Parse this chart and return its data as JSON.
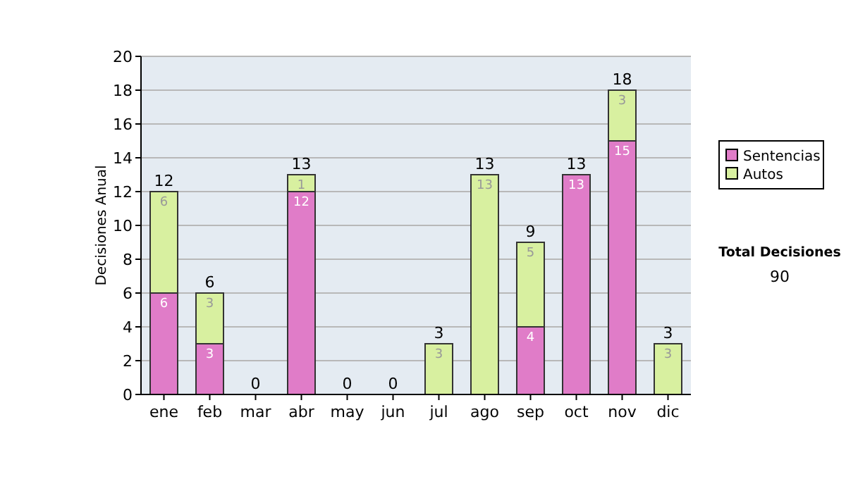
{
  "chart_data": {
    "type": "bar",
    "stacked": true,
    "ylabel": "Decisiones Anual",
    "categories": [
      "ene",
      "feb",
      "mar",
      "abr",
      "may",
      "jun",
      "jul",
      "ago",
      "sep",
      "oct",
      "nov",
      "dic"
    ],
    "series": [
      {
        "name": "Sentencias",
        "color": "#e07cc8",
        "values": [
          6,
          3,
          0,
          12,
          0,
          0,
          0,
          0,
          4,
          13,
          15,
          0
        ],
        "value_labels": [
          "6",
          "3",
          null,
          "12",
          null,
          null,
          null,
          null,
          "4",
          "13",
          "15",
          null
        ]
      },
      {
        "name": "Autos",
        "color": "#d8f0a0",
        "values": [
          6,
          3,
          0,
          1,
          0,
          0,
          3,
          13,
          5,
          0,
          3,
          3
        ],
        "value_labels": [
          "6",
          "3",
          null,
          "1",
          null,
          null,
          "3",
          "13",
          "5",
          null,
          "3",
          "3"
        ]
      }
    ],
    "totals": [
      "12",
      "6",
      "0",
      "13",
      "0",
      "0",
      "3",
      "13",
      "9",
      "13",
      "18",
      "3"
    ],
    "ylim": [
      0,
      20
    ],
    "yticks": [
      0,
      2,
      4,
      6,
      8,
      10,
      12,
      14,
      16,
      18,
      20
    ],
    "grid": "y",
    "legend": "right",
    "annotations": [
      "Total Decisiones",
      "90"
    ]
  }
}
